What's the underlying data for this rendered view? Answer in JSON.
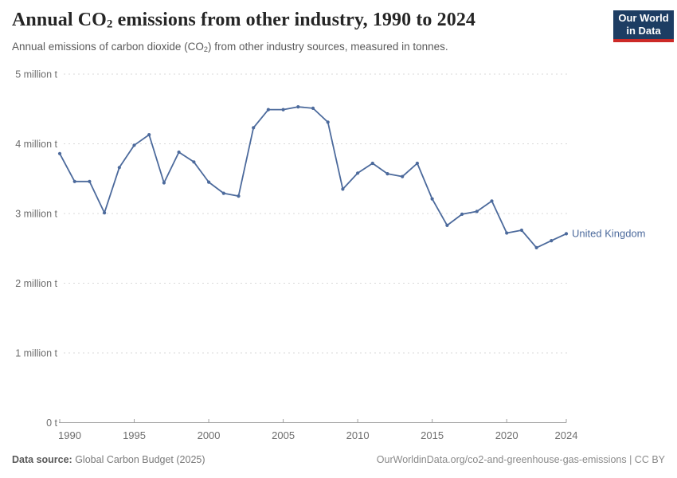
{
  "header": {
    "title_pre": "Annual CO",
    "title_sub": "2",
    "title_post": " emissions from other industry, 1990 to 2024",
    "subtitle_pre": "Annual emissions of carbon dioxide (CO",
    "subtitle_sub": "2",
    "subtitle_post": ") from other industry sources, measured in tonnes.",
    "logo": {
      "line1": "Our World",
      "line2": "in Data"
    }
  },
  "footer": {
    "source_label": "Data source:",
    "source_value": " Global Carbon Budget (2025)",
    "link": "OurWorldinData.org/co2-and-greenhouse-gas-emissions | CC BY"
  },
  "colors": {
    "line": "#4C6A9C",
    "grid": "#d9d9d9",
    "axis": "#a1a1a1",
    "tick_text": "#6e6e6e",
    "logo_bg": "#1d3d63",
    "logo_red": "#cc2a27"
  },
  "chart_data": {
    "type": "line",
    "title": "Annual CO₂ emissions from other industry, 1990 to 2024",
    "subtitle": "Annual emissions of carbon dioxide (CO₂) from other industry sources, measured in tonnes.",
    "unit": "million tonnes",
    "xlim": [
      1990,
      2024
    ],
    "ylim": [
      0,
      5
    ],
    "grid": "dashed-horizontal",
    "legend_position": "end-of-line",
    "x_ticks": [
      1990,
      1995,
      2000,
      2005,
      2010,
      2015,
      2020,
      2024
    ],
    "y_ticks": [
      {
        "value": 0,
        "label": "0 t"
      },
      {
        "value": 1,
        "label": "1 million t"
      },
      {
        "value": 2,
        "label": "2 million t"
      },
      {
        "value": 3,
        "label": "3 million t"
      },
      {
        "value": 4,
        "label": "4 million t"
      },
      {
        "value": 5,
        "label": "5 million t"
      }
    ],
    "series": [
      {
        "name": "United Kingdom",
        "x": [
          1990,
          1991,
          1992,
          1993,
          1994,
          1995,
          1996,
          1997,
          1998,
          1999,
          2000,
          2001,
          2002,
          2003,
          2004,
          2005,
          2006,
          2007,
          2008,
          2009,
          2010,
          2011,
          2012,
          2013,
          2014,
          2015,
          2016,
          2017,
          2018,
          2019,
          2020,
          2021,
          2022,
          2023,
          2024
        ],
        "values": [
          3.86,
          3.46,
          3.46,
          3.01,
          3.66,
          3.98,
          4.13,
          3.44,
          3.88,
          3.74,
          3.45,
          3.29,
          3.25,
          4.23,
          4.49,
          4.49,
          4.53,
          4.51,
          4.31,
          3.35,
          3.58,
          3.72,
          3.57,
          3.53,
          3.72,
          3.21,
          2.83,
          2.99,
          3.03,
          3.18,
          2.72,
          2.76,
          2.51,
          2.61,
          2.71
        ]
      }
    ]
  }
}
